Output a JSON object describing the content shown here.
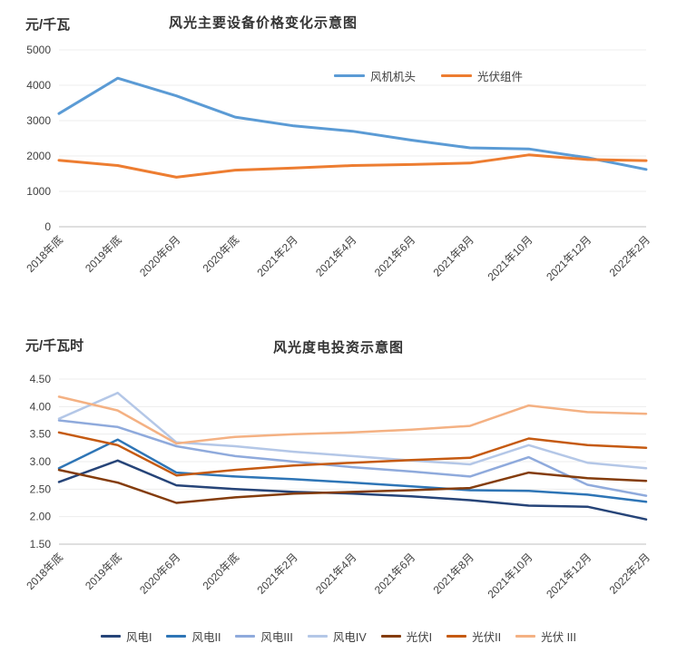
{
  "page": {
    "background": "#ffffff"
  },
  "chart_data": [
    {
      "type": "line",
      "title": "风光主要设备价格变化示意图",
      "unit_label": "元/千瓦",
      "categories": [
        "2018年底",
        "2019年底",
        "2020年6月",
        "2020年底",
        "2021年2月",
        "2021年4月",
        "2021年6月",
        "2021年8月",
        "2021年10月",
        "2021年12月",
        "2022年2月"
      ],
      "series": [
        {
          "name": "风机机头",
          "color": "#5b9bd5",
          "values": [
            3200,
            4200,
            3700,
            3100,
            2850,
            2700,
            2450,
            2230,
            2200,
            1950,
            1620
          ]
        },
        {
          "name": "光伏组件",
          "color": "#ed7d31",
          "values": [
            1880,
            1730,
            1400,
            1600,
            1660,
            1730,
            1760,
            1800,
            2030,
            1900,
            1870
          ]
        }
      ],
      "ylim": [
        0,
        5000
      ],
      "ytick_step": 1000,
      "ytick_decimals": 0,
      "legend_position": "top-right-inside",
      "grid": true,
      "grid_color": "#ededed",
      "axis_color": "#bfbfbf",
      "tick_label_color": "#404040"
    },
    {
      "type": "line",
      "title": "风光度电投资示意图",
      "unit_label": "元/千瓦时",
      "categories": [
        "2018年底",
        "2019年底",
        "2020年6月",
        "2020年底",
        "2021年2月",
        "2021年4月",
        "2021年6月",
        "2021年8月",
        "2021年10月",
        "2021年12月",
        "2022年2月"
      ],
      "series": [
        {
          "name": "风电I",
          "color": "#264478",
          "values": [
            2.63,
            3.02,
            2.57,
            2.5,
            2.45,
            2.42,
            2.37,
            2.3,
            2.2,
            2.18,
            1.95
          ]
        },
        {
          "name": "风电II",
          "color": "#2e75b6",
          "values": [
            2.88,
            3.4,
            2.8,
            2.73,
            2.68,
            2.62,
            2.55,
            2.48,
            2.47,
            2.4,
            2.27
          ]
        },
        {
          "name": "风电III",
          "color": "#8faadc",
          "values": [
            3.75,
            3.63,
            3.28,
            3.1,
            3.0,
            2.9,
            2.82,
            2.73,
            3.08,
            2.58,
            2.38
          ]
        },
        {
          "name": "风电IV",
          "color": "#b4c7e7",
          "values": [
            3.78,
            4.25,
            3.35,
            3.28,
            3.18,
            3.1,
            3.02,
            2.95,
            3.3,
            2.98,
            2.88
          ]
        },
        {
          "name": "光伏I",
          "color": "#843c0c",
          "values": [
            2.85,
            2.62,
            2.25,
            2.35,
            2.42,
            2.45,
            2.48,
            2.52,
            2.8,
            2.7,
            2.65
          ]
        },
        {
          "name": "光伏II",
          "color": "#c55a11",
          "values": [
            3.53,
            3.3,
            2.75,
            2.85,
            2.93,
            2.98,
            3.03,
            3.07,
            3.42,
            3.3,
            3.25
          ]
        },
        {
          "name": "光伏 III",
          "color": "#f4b183",
          "values": [
            4.18,
            3.93,
            3.33,
            3.45,
            3.5,
            3.53,
            3.58,
            3.65,
            4.02,
            3.9,
            3.87
          ]
        }
      ],
      "ylim": [
        1.5,
        4.5
      ],
      "ytick_step": 0.5,
      "ytick_decimals": 2,
      "legend_position": "bottom",
      "grid": true,
      "grid_color": "#ededed",
      "axis_color": "#bfbfbf",
      "tick_label_color": "#404040"
    }
  ]
}
